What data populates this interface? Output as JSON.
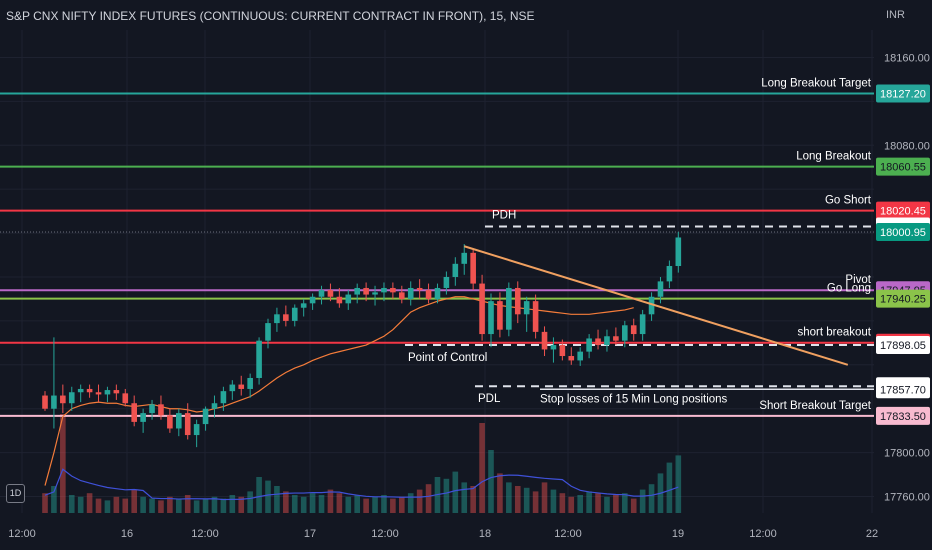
{
  "header": {
    "title": "S&P CNX NIFTY INDEX FUTURES (CONTINUOUS: CURRENT CONTRACT IN FRONT), 15, NSE",
    "currency": "INR",
    "interval_badge": "1D"
  },
  "colors": {
    "background": "#131722",
    "up": "#26a69a",
    "down": "#ef5350",
    "vwap": "#f57c3a",
    "volume_ma": "#3f51d9",
    "trendline": "#f0a060"
  },
  "chart_data": {
    "type": "candlestick",
    "title": "S&P CNX NIFTY INDEX FUTURES (CONTINUOUS: CURRENT CONTRACT IN FRONT), 15, NSE",
    "ylim": [
      17745,
      18185
    ],
    "y_ticks": [
      17760,
      17800,
      18080,
      18160
    ],
    "x_tick_labels": [
      "12:00",
      "16",
      "12:00",
      "17",
      "12:00",
      "18",
      "12:00",
      "19",
      "12:00",
      "22"
    ],
    "candles": [
      {
        "o": 17852,
        "h": 17856,
        "l": 17838,
        "c": 17840
      },
      {
        "o": 17840,
        "h": 17905,
        "l": 17822,
        "c": 17852
      },
      {
        "o": 17852,
        "h": 17862,
        "l": 17836,
        "c": 17845
      },
      {
        "o": 17845,
        "h": 17860,
        "l": 17838,
        "c": 17855
      },
      {
        "o": 17855,
        "h": 17862,
        "l": 17846,
        "c": 17858
      },
      {
        "o": 17858,
        "h": 17862,
        "l": 17850,
        "c": 17855
      },
      {
        "o": 17855,
        "h": 17862,
        "l": 17846,
        "c": 17853
      },
      {
        "o": 17853,
        "h": 17860,
        "l": 17846,
        "c": 17857
      },
      {
        "o": 17857,
        "h": 17862,
        "l": 17848,
        "c": 17854
      },
      {
        "o": 17854,
        "h": 17858,
        "l": 17842,
        "c": 17845
      },
      {
        "o": 17845,
        "h": 17852,
        "l": 17824,
        "c": 17828
      },
      {
        "o": 17828,
        "h": 17840,
        "l": 17818,
        "c": 17836
      },
      {
        "o": 17836,
        "h": 17848,
        "l": 17830,
        "c": 17844
      },
      {
        "o": 17844,
        "h": 17852,
        "l": 17830,
        "c": 17834
      },
      {
        "o": 17834,
        "h": 17840,
        "l": 17818,
        "c": 17822
      },
      {
        "o": 17822,
        "h": 17840,
        "l": 17815,
        "c": 17836
      },
      {
        "o": 17836,
        "h": 17845,
        "l": 17812,
        "c": 17816
      },
      {
        "o": 17816,
        "h": 17830,
        "l": 17805,
        "c": 17826
      },
      {
        "o": 17826,
        "h": 17842,
        "l": 17820,
        "c": 17840
      },
      {
        "o": 17840,
        "h": 17852,
        "l": 17832,
        "c": 17845
      },
      {
        "o": 17845,
        "h": 17860,
        "l": 17838,
        "c": 17856
      },
      {
        "o": 17856,
        "h": 17866,
        "l": 17848,
        "c": 17862
      },
      {
        "o": 17862,
        "h": 17870,
        "l": 17852,
        "c": 17858
      },
      {
        "o": 17858,
        "h": 17872,
        "l": 17850,
        "c": 17868
      },
      {
        "o": 17868,
        "h": 17905,
        "l": 17862,
        "c": 17902
      },
      {
        "o": 17902,
        "h": 17922,
        "l": 17895,
        "c": 17918
      },
      {
        "o": 17918,
        "h": 17932,
        "l": 17910,
        "c": 17926
      },
      {
        "o": 17926,
        "h": 17934,
        "l": 17915,
        "c": 17920
      },
      {
        "o": 17920,
        "h": 17935,
        "l": 17915,
        "c": 17932
      },
      {
        "o": 17932,
        "h": 17940,
        "l": 17924,
        "c": 17936
      },
      {
        "o": 17936,
        "h": 17945,
        "l": 17930,
        "c": 17942
      },
      {
        "o": 17942,
        "h": 17952,
        "l": 17935,
        "c": 17948
      },
      {
        "o": 17948,
        "h": 17954,
        "l": 17938,
        "c": 17942
      },
      {
        "o": 17942,
        "h": 17950,
        "l": 17932,
        "c": 17936
      },
      {
        "o": 17936,
        "h": 17948,
        "l": 17930,
        "c": 17944
      },
      {
        "o": 17944,
        "h": 17954,
        "l": 17936,
        "c": 17950
      },
      {
        "o": 17950,
        "h": 17955,
        "l": 17938,
        "c": 17944
      },
      {
        "o": 17944,
        "h": 17952,
        "l": 17934,
        "c": 17946
      },
      {
        "o": 17946,
        "h": 17955,
        "l": 17938,
        "c": 17950
      },
      {
        "o": 17950,
        "h": 17955,
        "l": 17940,
        "c": 17946
      },
      {
        "o": 17946,
        "h": 17952,
        "l": 17936,
        "c": 17940
      },
      {
        "o": 17940,
        "h": 17956,
        "l": 17934,
        "c": 17950
      },
      {
        "o": 17950,
        "h": 17958,
        "l": 17940,
        "c": 17948
      },
      {
        "o": 17948,
        "h": 17954,
        "l": 17936,
        "c": 17940
      },
      {
        "o": 17940,
        "h": 17954,
        "l": 17936,
        "c": 17950
      },
      {
        "o": 17950,
        "h": 17965,
        "l": 17944,
        "c": 17960
      },
      {
        "o": 17960,
        "h": 17978,
        "l": 17952,
        "c": 17972
      },
      {
        "o": 17972,
        "h": 17990,
        "l": 17962,
        "c": 17982
      },
      {
        "o": 17982,
        "h": 17986,
        "l": 17948,
        "c": 17954
      },
      {
        "o": 17954,
        "h": 17962,
        "l": 17902,
        "c": 17908
      },
      {
        "o": 17908,
        "h": 17945,
        "l": 17896,
        "c": 17938
      },
      {
        "o": 17938,
        "h": 17946,
        "l": 17905,
        "c": 17912
      },
      {
        "o": 17912,
        "h": 17955,
        "l": 17906,
        "c": 17950
      },
      {
        "o": 17950,
        "h": 17956,
        "l": 17918,
        "c": 17926
      },
      {
        "o": 17926,
        "h": 17942,
        "l": 17910,
        "c": 17938
      },
      {
        "o": 17938,
        "h": 17944,
        "l": 17904,
        "c": 17910
      },
      {
        "o": 17910,
        "h": 17915,
        "l": 17888,
        "c": 17894
      },
      {
        "o": 17894,
        "h": 17905,
        "l": 17882,
        "c": 17898
      },
      {
        "o": 17898,
        "h": 17903,
        "l": 17884,
        "c": 17888
      },
      {
        "o": 17888,
        "h": 17896,
        "l": 17880,
        "c": 17884
      },
      {
        "o": 17884,
        "h": 17896,
        "l": 17879,
        "c": 17892
      },
      {
        "o": 17892,
        "h": 17908,
        "l": 17886,
        "c": 17904
      },
      {
        "o": 17904,
        "h": 17912,
        "l": 17894,
        "c": 17898
      },
      {
        "o": 17898,
        "h": 17912,
        "l": 17892,
        "c": 17906
      },
      {
        "o": 17906,
        "h": 17914,
        "l": 17898,
        "c": 17902
      },
      {
        "o": 17902,
        "h": 17920,
        "l": 17896,
        "c": 17916
      },
      {
        "o": 17916,
        "h": 17922,
        "l": 17902,
        "c": 17908
      },
      {
        "o": 17908,
        "h": 17930,
        "l": 17902,
        "c": 17926
      },
      {
        "o": 17926,
        "h": 17946,
        "l": 17920,
        "c": 17942
      },
      {
        "o": 17942,
        "h": 17960,
        "l": 17936,
        "c": 17956
      },
      {
        "o": 17956,
        "h": 17975,
        "l": 17950,
        "c": 17970
      },
      {
        "o": 17970,
        "h": 18001,
        "l": 17964,
        "c": 17996
      }
    ],
    "volume": [
      22,
      30,
      110,
      20,
      18,
      22,
      16,
      14,
      18,
      16,
      26,
      18,
      16,
      14,
      18,
      16,
      20,
      14,
      16,
      18,
      16,
      20,
      18,
      24,
      40,
      36,
      30,
      24,
      20,
      18,
      22,
      20,
      26,
      22,
      18,
      20,
      16,
      18,
      20,
      16,
      18,
      22,
      26,
      32,
      40,
      38,
      46,
      34,
      30,
      100,
      70,
      44,
      34,
      30,
      28,
      24,
      34,
      26,
      22,
      18,
      20,
      24,
      22,
      18,
      20,
      22,
      16,
      26,
      32,
      44,
      56,
      64
    ],
    "series": [
      {
        "name": "",
        "type": "vwap",
        "values": [
          17770,
          17800,
          17833,
          17840,
          17843,
          17845,
          17846,
          17845,
          17845,
          17843,
          17842,
          17843,
          17844,
          17842,
          17840,
          17840,
          17839,
          17837,
          17838,
          17840,
          17842,
          17845,
          17848,
          17851,
          17856,
          17862,
          17868,
          17873,
          17877,
          17880,
          17884,
          17887,
          17890,
          17892,
          17894,
          17896,
          17898,
          17902,
          17906,
          17912,
          17920,
          17928,
          17932,
          17935,
          17938,
          17940,
          17942,
          17942,
          17940,
          17938,
          17936,
          17934,
          17933,
          17932,
          17931,
          17930,
          17929,
          17928,
          17927,
          17926,
          17926,
          17926,
          17927,
          17928,
          17929,
          17930,
          17932
        ]
      }
    ],
    "price_levels": [
      {
        "label": "Long Breakout Target",
        "price": "18127.20",
        "value": 18127.2,
        "color": "#26a69a"
      },
      {
        "label": "Long Breakout",
        "price": "18060.55",
        "value": 18060.55,
        "color": "#4caf50"
      },
      {
        "label": "Go Short",
        "price": "18020.45",
        "value": 18020.45,
        "color": "#f23645"
      },
      {
        "label": "",
        "price": "18006.05",
        "value": 18006.05,
        "color": "#dfe1e6"
      },
      {
        "label": "",
        "price": "18000.95",
        "value": 18000.95,
        "color": "#089981"
      },
      {
        "label": "Pivot",
        "price": "17947.95",
        "value": 17947.95,
        "color": "#ba68c8"
      },
      {
        "label": "Go Long",
        "price": "17940.25",
        "value": 17940.25,
        "color": "#8bc34a"
      },
      {
        "label": "short breakout",
        "price": "17900.15",
        "value": 17900.15,
        "color": "#f23645"
      },
      {
        "label": "",
        "price": "17898.05",
        "value": 17898.05,
        "color": "#dfe1e6"
      },
      {
        "label": "",
        "price": "17860.50",
        "value": 17860.5,
        "color": "#dfe1e6"
      },
      {
        "label": "",
        "price": "17857.70",
        "value": 17857.7,
        "color": "#dfe1e6"
      },
      {
        "label": "Short  Breakout Target",
        "price": "17833.50",
        "value": 17833.5,
        "color": "#f8bbd0"
      }
    ],
    "annotations": [
      {
        "text": "PDH",
        "value": 18006.05
      },
      {
        "text": "Point of Control",
        "value": 17898.05
      },
      {
        "text": "PDL",
        "value": 17860.5
      },
      {
        "text": "Stop losses of 15 Min Long positions",
        "value": 17857.7
      }
    ],
    "trendline": {
      "from": {
        "candle": 47,
        "value": 17988
      },
      "to": {
        "candle": 90,
        "value": 17880
      }
    },
    "grid": true
  }
}
